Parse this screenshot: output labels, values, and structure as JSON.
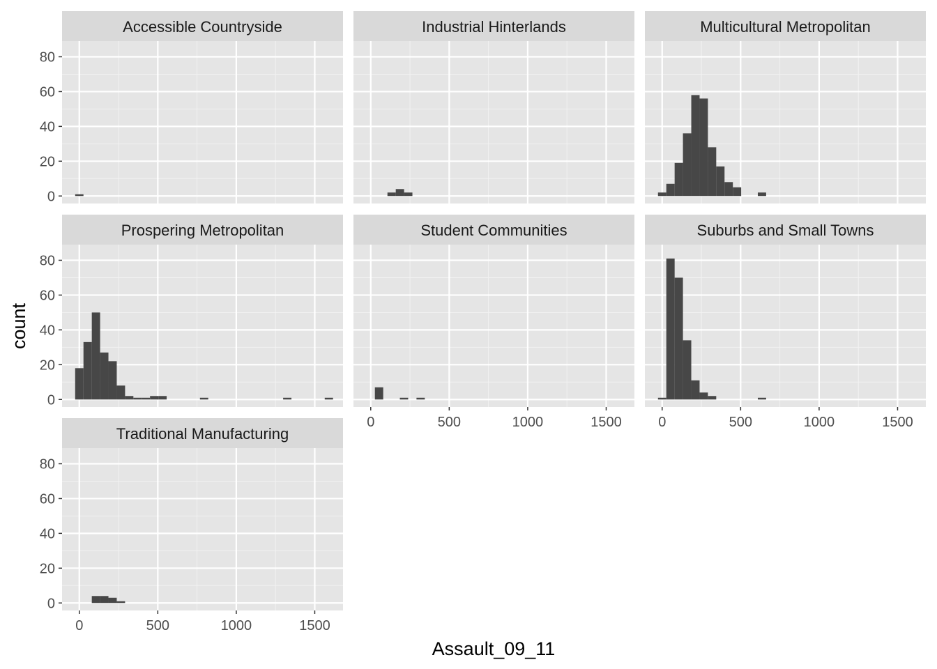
{
  "chart_data": {
    "type": "bar",
    "subtype": "faceted-histogram",
    "xlabel": "Assault_09_11",
    "ylabel": "count",
    "xlim": [
      -110,
      1680
    ],
    "ylim": [
      -4.3,
      89
    ],
    "xticks": [
      0,
      500,
      1000,
      1500
    ],
    "yticks": [
      0,
      20,
      40,
      60,
      80
    ],
    "bin_width": 53,
    "grid": true,
    "bar_color": "#474747",
    "panel_background": "#e5e5e5",
    "strip_background": "#d9d9d9",
    "facets": [
      {
        "name": "Accessible Countryside",
        "bins": [
          {
            "x": 0,
            "count": 1
          }
        ]
      },
      {
        "name": "Industrial Hinterlands",
        "bins": [
          {
            "x": 133,
            "count": 2
          },
          {
            "x": 186,
            "count": 4
          },
          {
            "x": 239,
            "count": 2
          }
        ]
      },
      {
        "name": "Multicultural Metropolitan",
        "bins": [
          {
            "x": 0,
            "count": 2
          },
          {
            "x": 53,
            "count": 7
          },
          {
            "x": 106,
            "count": 19
          },
          {
            "x": 159,
            "count": 36
          },
          {
            "x": 212,
            "count": 58
          },
          {
            "x": 265,
            "count": 56
          },
          {
            "x": 318,
            "count": 28
          },
          {
            "x": 371,
            "count": 17
          },
          {
            "x": 424,
            "count": 8
          },
          {
            "x": 477,
            "count": 5
          },
          {
            "x": 636,
            "count": 2
          }
        ]
      },
      {
        "name": "Prospering Metropolitan",
        "bins": [
          {
            "x": 0,
            "count": 18
          },
          {
            "x": 53,
            "count": 33
          },
          {
            "x": 106,
            "count": 50
          },
          {
            "x": 159,
            "count": 27
          },
          {
            "x": 212,
            "count": 22
          },
          {
            "x": 265,
            "count": 8
          },
          {
            "x": 318,
            "count": 2
          },
          {
            "x": 371,
            "count": 1
          },
          {
            "x": 424,
            "count": 1
          },
          {
            "x": 477,
            "count": 2
          },
          {
            "x": 530,
            "count": 2
          },
          {
            "x": 795,
            "count": 1
          },
          {
            "x": 1325,
            "count": 1
          },
          {
            "x": 1590,
            "count": 1
          }
        ]
      },
      {
        "name": "Student Communities",
        "bins": [
          {
            "x": 53,
            "count": 7
          },
          {
            "x": 212,
            "count": 1
          },
          {
            "x": 318,
            "count": 1
          }
        ]
      },
      {
        "name": "Suburbs and Small Towns",
        "bins": [
          {
            "x": 0,
            "count": 1
          },
          {
            "x": 53,
            "count": 81
          },
          {
            "x": 106,
            "count": 70
          },
          {
            "x": 159,
            "count": 34
          },
          {
            "x": 212,
            "count": 11
          },
          {
            "x": 265,
            "count": 4
          },
          {
            "x": 318,
            "count": 2
          },
          {
            "x": 636,
            "count": 1
          }
        ]
      },
      {
        "name": "Traditional Manufacturing",
        "bins": [
          {
            "x": 106,
            "count": 4
          },
          {
            "x": 159,
            "count": 4
          },
          {
            "x": 212,
            "count": 3
          },
          {
            "x": 265,
            "count": 1
          }
        ]
      }
    ]
  }
}
